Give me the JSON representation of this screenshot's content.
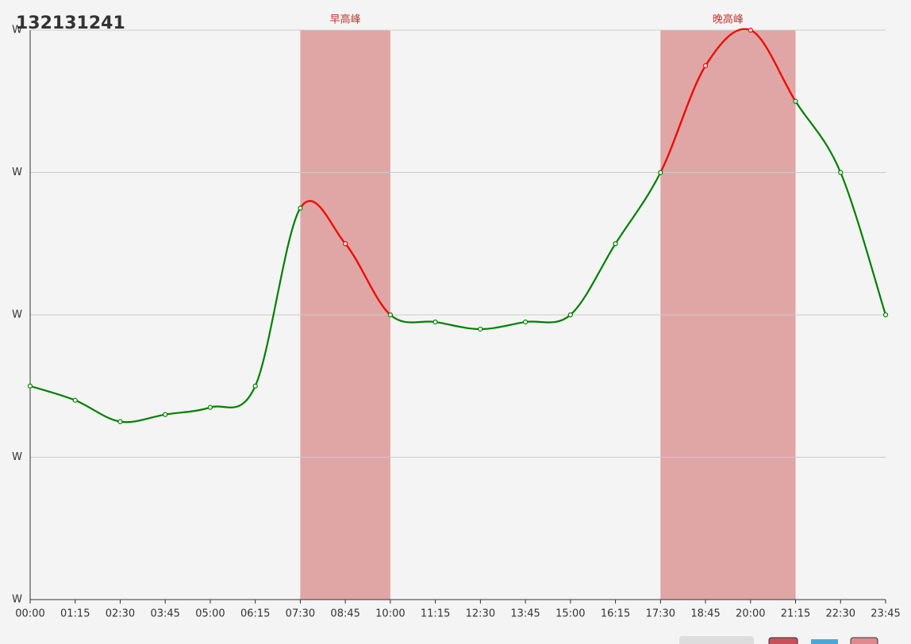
{
  "chart_data": {
    "type": "line",
    "title": "132131241",
    "categories": [
      "00:00",
      "01:15",
      "02:30",
      "03:45",
      "05:00",
      "06:15",
      "07:30",
      "08:45",
      "10:00",
      "11:15",
      "12:30",
      "13:45",
      "15:00",
      "16:15",
      "17:30",
      "18:45",
      "20:00",
      "21:15",
      "22:30",
      "23:45"
    ],
    "series": [
      {
        "color": "#008000",
        "peak_color": "#ff0000",
        "values": [
          150,
          140,
          125,
          130,
          135,
          150,
          275,
          250,
          200,
          195,
          190,
          195,
          200,
          250,
          300,
          375,
          400,
          350,
          300,
          200
        ]
      }
    ],
    "ylim": [
      0,
      400
    ],
    "yticks": [
      {
        "value": 0,
        "label": "W"
      },
      {
        "value": 100,
        "label": "W"
      },
      {
        "value": 200,
        "label": "W"
      },
      {
        "value": 300,
        "label": "W"
      },
      {
        "value": 400,
        "label": "W"
      }
    ],
    "grid": true,
    "mark_areas": [
      {
        "name": "早高峰",
        "start": "07:30",
        "end": "10:00"
      },
      {
        "name": "晚高峰",
        "start": "17:30",
        "end": "21:15"
      }
    ],
    "mark_area_color": "#e0a5a5"
  }
}
